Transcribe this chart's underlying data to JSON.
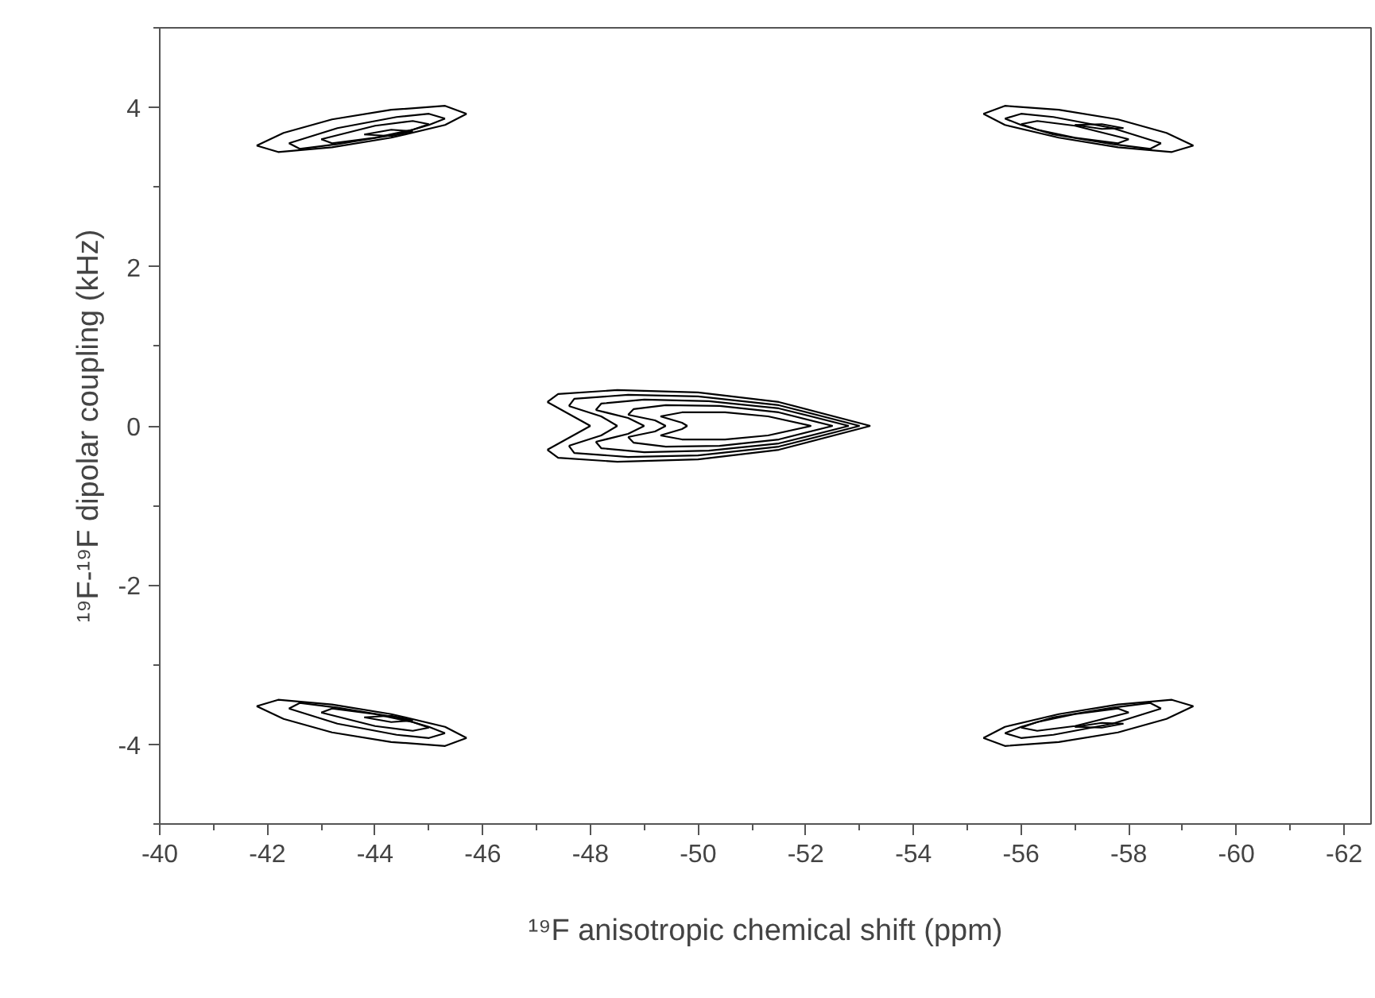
{
  "chart_data": {
    "type": "line",
    "xlabel": "¹⁹F anisotropic chemical shift (ppm)",
    "ylabel": "¹⁹F-¹⁹F dipolar coupling (kHz)",
    "xlim": [
      -40,
      -62.5
    ],
    "ylim": [
      -5,
      5
    ],
    "xticks": [
      -40,
      {
        "value": -41,
        "label": null
      },
      -42,
      {
        "value": -43,
        "label": null
      },
      -44,
      {
        "value": -45,
        "label": null
      },
      -46,
      {
        "value": -47,
        "label": null
      },
      -48,
      {
        "value": -49,
        "label": null
      },
      -50,
      {
        "value": -51,
        "label": null
      },
      -52,
      {
        "value": -53,
        "label": null
      },
      -54,
      {
        "value": -55,
        "label": null
      },
      -56,
      {
        "value": -57,
        "label": null
      },
      -58,
      {
        "value": -59,
        "label": null
      },
      -60,
      {
        "value": -61,
        "label": null
      },
      -62
    ],
    "yticks": [
      {
        "value": -5,
        "label": null
      },
      -4,
      {
        "value": -3,
        "label": null
      },
      -2,
      {
        "value": -1,
        "label": null
      },
      0,
      {
        "value": 1,
        "label": null
      },
      2,
      {
        "value": 3,
        "label": null
      },
      4,
      {
        "value": 5,
        "label": null
      }
    ],
    "grid": false,
    "marker": "none",
    "line_style": "solid",
    "series": [
      {
        "color": "#000000",
        "x": [
          -41.8,
          -42.3,
          -43.2,
          -44.3,
          -45.3,
          -45.7
        ],
        "values": [
          3.52,
          3.68,
          3.85,
          3.97,
          4.02,
          3.92
        ]
      },
      {
        "color": "#000000",
        "x": [
          -41.8,
          -42.2,
          -43.2,
          -44.3,
          -45.3,
          -45.7
        ],
        "values": [
          3.52,
          3.44,
          3.5,
          3.62,
          3.78,
          3.92
        ]
      },
      {
        "color": "#000000",
        "x": [
          -42.4,
          -43.3,
          -44.4,
          -45.0,
          -45.3
        ],
        "values": [
          3.55,
          3.74,
          3.88,
          3.92,
          3.86
        ]
      },
      {
        "color": "#000000",
        "x": [
          -42.4,
          -42.6,
          -43.3,
          -44.4,
          -45.0,
          -45.3
        ],
        "values": [
          3.55,
          3.48,
          3.54,
          3.66,
          3.78,
          3.86
        ]
      },
      {
        "color": "#000000",
        "x": [
          -43.0,
          -44.0,
          -44.7,
          -45.0
        ],
        "values": [
          3.6,
          3.77,
          3.83,
          3.79
        ]
      },
      {
        "color": "#000000",
        "x": [
          -43.0,
          -43.2,
          -44.0,
          -44.7,
          -45.0
        ],
        "values": [
          3.6,
          3.55,
          3.62,
          3.72,
          3.79
        ]
      },
      {
        "color": "#000000",
        "x": [
          -43.8,
          -44.3,
          -44.7
        ],
        "values": [
          3.66,
          3.72,
          3.7
        ]
      },
      {
        "color": "#000000",
        "x": [
          -43.8,
          -44.3,
          -44.7
        ],
        "values": [
          3.66,
          3.64,
          3.7
        ]
      },
      {
        "color": "#000000",
        "x": [
          -59.2,
          -58.7,
          -57.8,
          -56.7,
          -55.7,
          -55.3
        ],
        "values": [
          3.52,
          3.68,
          3.85,
          3.97,
          4.02,
          3.92
        ]
      },
      {
        "color": "#000000",
        "x": [
          -59.2,
          -58.8,
          -57.8,
          -56.7,
          -55.7,
          -55.3
        ],
        "values": [
          3.52,
          3.44,
          3.5,
          3.62,
          3.78,
          3.92
        ]
      },
      {
        "color": "#000000",
        "x": [
          -58.6,
          -57.7,
          -56.6,
          -56.0,
          -55.7
        ],
        "values": [
          3.55,
          3.74,
          3.88,
          3.92,
          3.86
        ]
      },
      {
        "color": "#000000",
        "x": [
          -58.6,
          -58.4,
          -57.7,
          -56.6,
          -56.0,
          -55.7
        ],
        "values": [
          3.55,
          3.48,
          3.54,
          3.66,
          3.78,
          3.86
        ]
      },
      {
        "color": "#000000",
        "x": [
          -58.0,
          -57.0,
          -56.3,
          -56.0
        ],
        "values": [
          3.6,
          3.77,
          3.83,
          3.79
        ]
      },
      {
        "color": "#000000",
        "x": [
          -58.0,
          -57.8,
          -57.0,
          -56.3,
          -56.0
        ],
        "values": [
          3.6,
          3.55,
          3.62,
          3.72,
          3.79
        ]
      },
      {
        "color": "#000000",
        "x": [
          -57.0,
          -57.5,
          -57.9
        ],
        "values": [
          3.78,
          3.79,
          3.74
        ]
      },
      {
        "color": "#000000",
        "x": [
          -57.0,
          -57.5,
          -57.9
        ],
        "values": [
          3.78,
          3.73,
          3.74
        ]
      },
      {
        "color": "#000000",
        "x": [
          -41.8,
          -42.3,
          -43.2,
          -44.3,
          -45.3,
          -45.7
        ],
        "values": [
          -3.52,
          -3.68,
          -3.85,
          -3.97,
          -4.02,
          -3.92
        ]
      },
      {
        "color": "#000000",
        "x": [
          -41.8,
          -42.2,
          -43.2,
          -44.3,
          -45.3,
          -45.7
        ],
        "values": [
          -3.52,
          -3.44,
          -3.5,
          -3.62,
          -3.78,
          -3.92
        ]
      },
      {
        "color": "#000000",
        "x": [
          -42.4,
          -43.3,
          -44.4,
          -45.0,
          -45.3
        ],
        "values": [
          -3.55,
          -3.74,
          -3.88,
          -3.92,
          -3.86
        ]
      },
      {
        "color": "#000000",
        "x": [
          -42.4,
          -42.6,
          -43.3,
          -44.4,
          -45.0,
          -45.3
        ],
        "values": [
          -3.55,
          -3.48,
          -3.54,
          -3.66,
          -3.78,
          -3.86
        ]
      },
      {
        "color": "#000000",
        "x": [
          -43.0,
          -44.0,
          -44.7,
          -45.0
        ],
        "values": [
          -3.6,
          -3.77,
          -3.83,
          -3.79
        ]
      },
      {
        "color": "#000000",
        "x": [
          -43.0,
          -43.2,
          -44.0,
          -44.7,
          -45.0
        ],
        "values": [
          -3.6,
          -3.55,
          -3.62,
          -3.72,
          -3.79
        ]
      },
      {
        "color": "#000000",
        "x": [
          -43.8,
          -44.3,
          -44.7
        ],
        "values": [
          -3.66,
          -3.72,
          -3.7
        ]
      },
      {
        "color": "#000000",
        "x": [
          -43.8,
          -44.3,
          -44.7
        ],
        "values": [
          -3.66,
          -3.64,
          -3.7
        ]
      },
      {
        "color": "#000000",
        "x": [
          -59.2,
          -58.7,
          -57.8,
          -56.7,
          -55.7,
          -55.3
        ],
        "values": [
          -3.52,
          -3.68,
          -3.85,
          -3.97,
          -4.02,
          -3.92
        ]
      },
      {
        "color": "#000000",
        "x": [
          -59.2,
          -58.8,
          -57.8,
          -56.7,
          -55.7,
          -55.3
        ],
        "values": [
          -3.52,
          -3.44,
          -3.5,
          -3.62,
          -3.78,
          -3.92
        ]
      },
      {
        "color": "#000000",
        "x": [
          -58.6,
          -57.7,
          -56.6,
          -56.0,
          -55.7
        ],
        "values": [
          -3.55,
          -3.74,
          -3.88,
          -3.92,
          -3.86
        ]
      },
      {
        "color": "#000000",
        "x": [
          -58.6,
          -58.4,
          -57.7,
          -56.6,
          -56.0,
          -55.7
        ],
        "values": [
          -3.55,
          -3.48,
          -3.54,
          -3.66,
          -3.78,
          -3.86
        ]
      },
      {
        "color": "#000000",
        "x": [
          -58.0,
          -57.0,
          -56.3,
          -56.0
        ],
        "values": [
          -3.6,
          -3.77,
          -3.83,
          -3.79
        ]
      },
      {
        "color": "#000000",
        "x": [
          -58.0,
          -57.8,
          -57.0,
          -56.3,
          -56.0
        ],
        "values": [
          -3.6,
          -3.55,
          -3.62,
          -3.72,
          -3.79
        ]
      },
      {
        "color": "#000000",
        "x": [
          -57.0,
          -57.5,
          -57.9
        ],
        "values": [
          -3.78,
          -3.79,
          -3.74
        ]
      },
      {
        "color": "#000000",
        "x": [
          -57.0,
          -57.5,
          -57.9
        ],
        "values": [
          -3.78,
          -3.73,
          -3.74
        ]
      },
      {
        "color": "#000000",
        "x": [
          -53.2,
          -51.5,
          -50.0,
          -48.5,
          -47.4,
          -47.2
        ],
        "values": [
          0,
          0.3,
          0.42,
          0.45,
          0.4,
          0.3
        ]
      },
      {
        "color": "#000000",
        "x": [
          -47.2,
          -47.6,
          -48.0
        ],
        "values": [
          0.3,
          0.15,
          0
        ]
      },
      {
        "color": "#000000",
        "x": [
          -48.0,
          -47.6,
          -47.2
        ],
        "values": [
          0,
          -0.15,
          -0.3
        ]
      },
      {
        "color": "#000000",
        "x": [
          -47.2,
          -47.4,
          -48.5,
          -50.0,
          -51.5,
          -53.2
        ],
        "values": [
          -0.3,
          -0.4,
          -0.45,
          -0.42,
          -0.3,
          0
        ]
      },
      {
        "color": "#000000",
        "x": [
          -53.0,
          -51.5,
          -50.0,
          -48.7,
          -47.7,
          -47.6
        ],
        "values": [
          0,
          0.26,
          0.37,
          0.39,
          0.34,
          0.25
        ]
      },
      {
        "color": "#000000",
        "x": [
          -47.6,
          -48.2,
          -48.5
        ],
        "values": [
          0.25,
          0.12,
          0
        ]
      },
      {
        "color": "#000000",
        "x": [
          -48.5,
          -48.2,
          -47.6
        ],
        "values": [
          0,
          -0.12,
          -0.25
        ]
      },
      {
        "color": "#000000",
        "x": [
          -47.6,
          -47.7,
          -48.7,
          -50.0,
          -51.5,
          -53.0
        ],
        "values": [
          -0.25,
          -0.34,
          -0.39,
          -0.37,
          -0.26,
          0
        ]
      },
      {
        "color": "#000000",
        "x": [
          -52.8,
          -51.5,
          -50.2,
          -49.0,
          -48.2,
          -48.1
        ],
        "values": [
          0,
          0.22,
          0.31,
          0.33,
          0.28,
          0.2
        ]
      },
      {
        "color": "#000000",
        "x": [
          -48.1,
          -48.7,
          -49.0
        ],
        "values": [
          0.2,
          0.1,
          0
        ]
      },
      {
        "color": "#000000",
        "x": [
          -49.0,
          -48.7,
          -48.1
        ],
        "values": [
          0,
          -0.1,
          -0.2
        ]
      },
      {
        "color": "#000000",
        "x": [
          -48.1,
          -48.2,
          -49.0,
          -50.2,
          -51.5,
          -52.8
        ],
        "values": [
          -0.2,
          -0.28,
          -0.33,
          -0.31,
          -0.22,
          0
        ]
      },
      {
        "color": "#000000",
        "x": [
          -52.5,
          -51.5,
          -50.4,
          -49.4,
          -48.8,
          -48.7
        ],
        "values": [
          0,
          0.17,
          0.25,
          0.26,
          0.21,
          0.14
        ]
      },
      {
        "color": "#000000",
        "x": [
          -48.7,
          -49.2,
          -49.4
        ],
        "values": [
          0.14,
          0.07,
          0
        ]
      },
      {
        "color": "#000000",
        "x": [
          -49.4,
          -49.2,
          -48.7
        ],
        "values": [
          0,
          -0.07,
          -0.14
        ]
      },
      {
        "color": "#000000",
        "x": [
          -48.7,
          -48.8,
          -49.4,
          -50.4,
          -51.5,
          -52.5
        ],
        "values": [
          -0.14,
          -0.21,
          -0.26,
          -0.25,
          -0.17,
          0
        ]
      },
      {
        "color": "#000000",
        "x": [
          -52.1,
          -51.3,
          -50.5,
          -49.7,
          -49.3
        ],
        "values": [
          0,
          0.12,
          0.17,
          0.17,
          0.12
        ]
      },
      {
        "color": "#000000",
        "x": [
          -49.3,
          -49.7,
          -49.8
        ],
        "values": [
          0.12,
          0.04,
          0
        ]
      },
      {
        "color": "#000000",
        "x": [
          -49.8,
          -49.7,
          -49.3
        ],
        "values": [
          0,
          -0.04,
          -0.12
        ]
      },
      {
        "color": "#000000",
        "x": [
          -49.3,
          -49.7,
          -50.5,
          -51.3,
          -52.1
        ],
        "values": [
          -0.12,
          -0.17,
          -0.17,
          -0.12,
          0
        ]
      }
    ]
  }
}
